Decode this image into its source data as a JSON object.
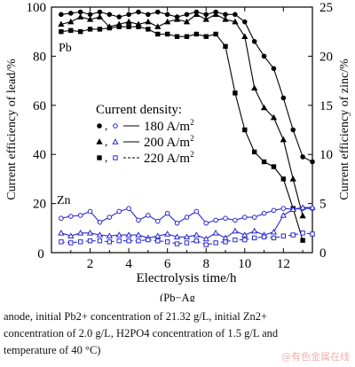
{
  "chart_data": {
    "type": "line",
    "xlabel": "Electrolysis time/h",
    "ylabel_left": "Current efficiency of lead/%",
    "ylabel_right": "Current efficiency of zinc/%",
    "xlim": [
      0,
      13.5
    ],
    "xticks": [
      2,
      4,
      6,
      8,
      10,
      12
    ],
    "ylim_left": [
      0,
      100
    ],
    "yticks_left": [
      0,
      20,
      40,
      60,
      80,
      100
    ],
    "ylim_right": [
      0,
      25
    ],
    "yticks_right": [
      0,
      5,
      10,
      15,
      20,
      25
    ],
    "legend_title": "Current density:",
    "legend_placement": "center-left",
    "grid": false,
    "labels": {
      "pb": "Pb",
      "zn": "Zn"
    },
    "series": [
      {
        "name": "180 A/m2",
        "metal": "Pb",
        "marker": "circle-filled",
        "color": "#000000",
        "x": [
          0.5,
          1,
          1.5,
          2,
          2.5,
          3,
          3.5,
          4,
          4.5,
          5,
          5.5,
          6,
          6.5,
          7,
          7.5,
          8,
          8.5,
          9,
          9.5,
          10,
          10.5,
          11,
          11.5,
          12,
          12.5,
          13,
          13.5
        ],
        "y": [
          97,
          97.5,
          98,
          97,
          98,
          97,
          96,
          97,
          98,
          97,
          98,
          97,
          96,
          97,
          98,
          97,
          98,
          97,
          97,
          94,
          86,
          80,
          75,
          63,
          50,
          39,
          37
        ]
      },
      {
        "name": "200 A/m2",
        "metal": "Pb",
        "marker": "triangle-filled",
        "color": "#000000",
        "x": [
          0.5,
          1,
          1.5,
          2,
          2.5,
          3,
          3.5,
          4,
          4.5,
          5,
          5.5,
          6,
          6.5,
          7,
          7.5,
          8,
          8.5,
          9,
          9.5,
          10,
          10.5,
          11,
          11.5,
          12,
          12.5,
          13
        ],
        "y": [
          93,
          94,
          96,
          95,
          96,
          92,
          93,
          94,
          93,
          94,
          92,
          94,
          95,
          94,
          97,
          95,
          97,
          95,
          94,
          88,
          67,
          59,
          55,
          46,
          30,
          15
        ]
      },
      {
        "name": "220 A/m2",
        "metal": "Pb",
        "marker": "square-filled",
        "color": "#000000",
        "x": [
          0.5,
          1,
          1.5,
          2,
          2.5,
          3,
          3.5,
          4,
          4.5,
          5,
          5.5,
          6,
          6.5,
          7,
          7.5,
          8,
          8.5,
          9,
          9.5,
          10,
          10.5,
          11,
          11.5,
          12,
          12.5,
          13
        ],
        "y": [
          90,
          90.5,
          90,
          91,
          91,
          91.5,
          92,
          92,
          92,
          91,
          89,
          89,
          88,
          88,
          89,
          88,
          89,
          84,
          65,
          50,
          41,
          37,
          35,
          30,
          18,
          5
        ]
      },
      {
        "name": "180 A/m2",
        "metal": "Zn",
        "marker": "circle-open",
        "color": "#2a2ad0",
        "x": [
          0.5,
          1,
          1.5,
          2,
          2.5,
          3,
          3.5,
          4,
          4.5,
          5,
          5.5,
          6,
          6.5,
          7,
          7.5,
          8,
          8.5,
          9,
          9.5,
          10,
          10.5,
          11,
          11.5,
          12,
          12.5,
          13,
          13.5
        ],
        "y": [
          3.5,
          3.7,
          3.8,
          4.2,
          3.1,
          3.6,
          4.2,
          4.5,
          3.3,
          3.8,
          3.2,
          4.0,
          3.0,
          3.6,
          4.2,
          3.0,
          3.3,
          3.5,
          3.3,
          3.6,
          3.6,
          4.0,
          4.3,
          4.5,
          4.4,
          4.5,
          4.5
        ]
      },
      {
        "name": "200 A/m2",
        "metal": "Zn",
        "marker": "triangle-open",
        "color": "#2a2ad0",
        "x": [
          0.5,
          1,
          1.5,
          2,
          2.5,
          3,
          3.5,
          4,
          4.5,
          5,
          5.5,
          6,
          6.5,
          7,
          7.5,
          8,
          8.5,
          9,
          9.5,
          10,
          10.5,
          11,
          11.5,
          12,
          12.5,
          13,
          13.5
        ],
        "y": [
          2.0,
          1.7,
          2.0,
          2.0,
          1.8,
          1.7,
          1.8,
          1.8,
          1.8,
          1.5,
          1.7,
          1.9,
          1.6,
          1.6,
          1.8,
          1.4,
          2.0,
          1.5,
          2.2,
          1.8,
          2.2,
          1.8,
          2.1,
          3.8,
          4.4,
          4.6,
          4.6
        ]
      },
      {
        "name": "220 A/m2",
        "metal": "Zn",
        "marker": "square-open",
        "color": "#2a2ad0",
        "x": [
          0.5,
          1,
          1.5,
          2,
          2.5,
          3,
          3.5,
          4,
          4.5,
          5,
          5.5,
          6,
          6.5,
          7,
          7.5,
          8,
          8.5,
          9,
          9.5,
          10,
          10.5,
          11,
          11.5,
          12,
          12.5,
          13,
          13.5
        ],
        "y": [
          1.1,
          1.0,
          1.1,
          1.2,
          1.2,
          1.1,
          1.2,
          1.2,
          1.2,
          1.3,
          1.2,
          1.1,
          0.9,
          1.0,
          1.2,
          0.8,
          1.0,
          1.1,
          1.3,
          1.3,
          1.5,
          1.6,
          1.5,
          1.7,
          1.8,
          2.0,
          1.9
        ]
      }
    ]
  },
  "caption": {
    "partial_label": "(Pb−Ag",
    "line1": "anode, initial Pb2+ concentration of 21.32 g/L, initial Zn2+",
    "line2": "concentration of 2.0 g/L, H2PO4 concentration of 1.5 g/L and",
    "line3": "temperature of 40 °C)"
  },
  "watermark": "@有色金属在线"
}
